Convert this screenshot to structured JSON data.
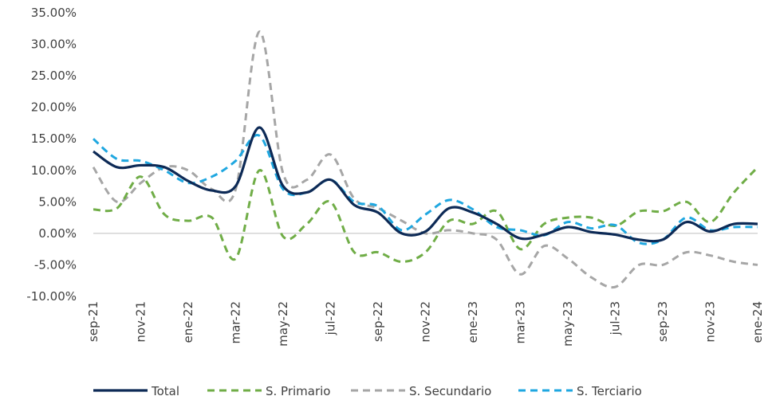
{
  "chart_data": {
    "type": "line",
    "x": [
      "sep-21",
      "oct-21",
      "nov-21",
      "dic-21",
      "ene-22",
      "feb-22",
      "mar-22",
      "abr-22",
      "may-22",
      "jun-22",
      "jul-22",
      "ago-22",
      "sep-22",
      "oct-22",
      "nov-22",
      "dic-22",
      "ene-23",
      "feb-23",
      "mar-23",
      "abr-23",
      "may-23",
      "jun-23",
      "jul-23",
      "ago-23",
      "sep-23",
      "oct-23",
      "nov-23",
      "dic-23",
      "ene-24"
    ],
    "x_tick_labels": [
      "sep-21",
      "nov-21",
      "ene-22",
      "mar-22",
      "may-22",
      "jul-22",
      "sep-22",
      "nov-22",
      "ene-23",
      "mar-23",
      "may-23",
      "jul-23",
      "sep-23",
      "nov-23",
      "ene-24"
    ],
    "y_tick_labels": [
      "35.00%",
      "30.00%",
      "25.00%",
      "20.00%",
      "15.00%",
      "10.00%",
      "5.00%",
      "0.00%",
      "-5.00%",
      "-10.00%"
    ],
    "ylim": [
      -10,
      35
    ],
    "y_unit": "%",
    "legend_position": "bottom",
    "series": [
      {
        "name": "Total",
        "color": "#0d2a56",
        "style": "solid",
        "values": [
          13.0,
          10.5,
          10.8,
          10.5,
          8.3,
          6.8,
          7.5,
          16.8,
          7.5,
          6.5,
          8.5,
          4.5,
          3.3,
          0.0,
          0.3,
          4.0,
          3.3,
          1.5,
          -0.8,
          -0.2,
          1.0,
          0.2,
          -0.2,
          -1.0,
          -1.0,
          1.8,
          0.3,
          1.5,
          1.5
        ]
      },
      {
        "name": "S. Primario",
        "color": "#70ad47",
        "style": "dashed",
        "values": [
          3.8,
          4.0,
          9.0,
          3.0,
          2.0,
          2.5,
          -4.0,
          10.0,
          -0.5,
          1.5,
          5.0,
          -3.0,
          -3.0,
          -4.5,
          -3.0,
          2.0,
          1.5,
          3.5,
          -2.5,
          1.5,
          2.5,
          2.5,
          1.2,
          3.5,
          3.5,
          5.0,
          1.8,
          6.5,
          10.5
        ]
      },
      {
        "name": "S. Secundario",
        "color": "#a6a6a6",
        "style": "dashed",
        "values": [
          10.5,
          5.0,
          8.0,
          10.5,
          10.0,
          7.0,
          7.0,
          32.0,
          9.5,
          8.5,
          12.5,
          5.5,
          4.0,
          2.0,
          0.0,
          0.5,
          0.0,
          -1.0,
          -6.5,
          -2.0,
          -4.0,
          -7.0,
          -8.5,
          -5.0,
          -5.0,
          -3.0,
          -3.5,
          -4.5,
          -5.0
        ]
      },
      {
        "name": "S. Terciario",
        "color": "#1fa7e0",
        "style": "dashed",
        "values": [
          15.0,
          11.8,
          11.5,
          10.0,
          8.0,
          9.0,
          11.5,
          15.5,
          7.0,
          6.5,
          8.5,
          5.0,
          4.3,
          0.5,
          3.0,
          5.3,
          3.8,
          1.0,
          0.5,
          -0.3,
          1.8,
          0.8,
          1.3,
          -1.5,
          -1.0,
          2.5,
          0.5,
          1.0,
          1.0
        ]
      }
    ]
  }
}
